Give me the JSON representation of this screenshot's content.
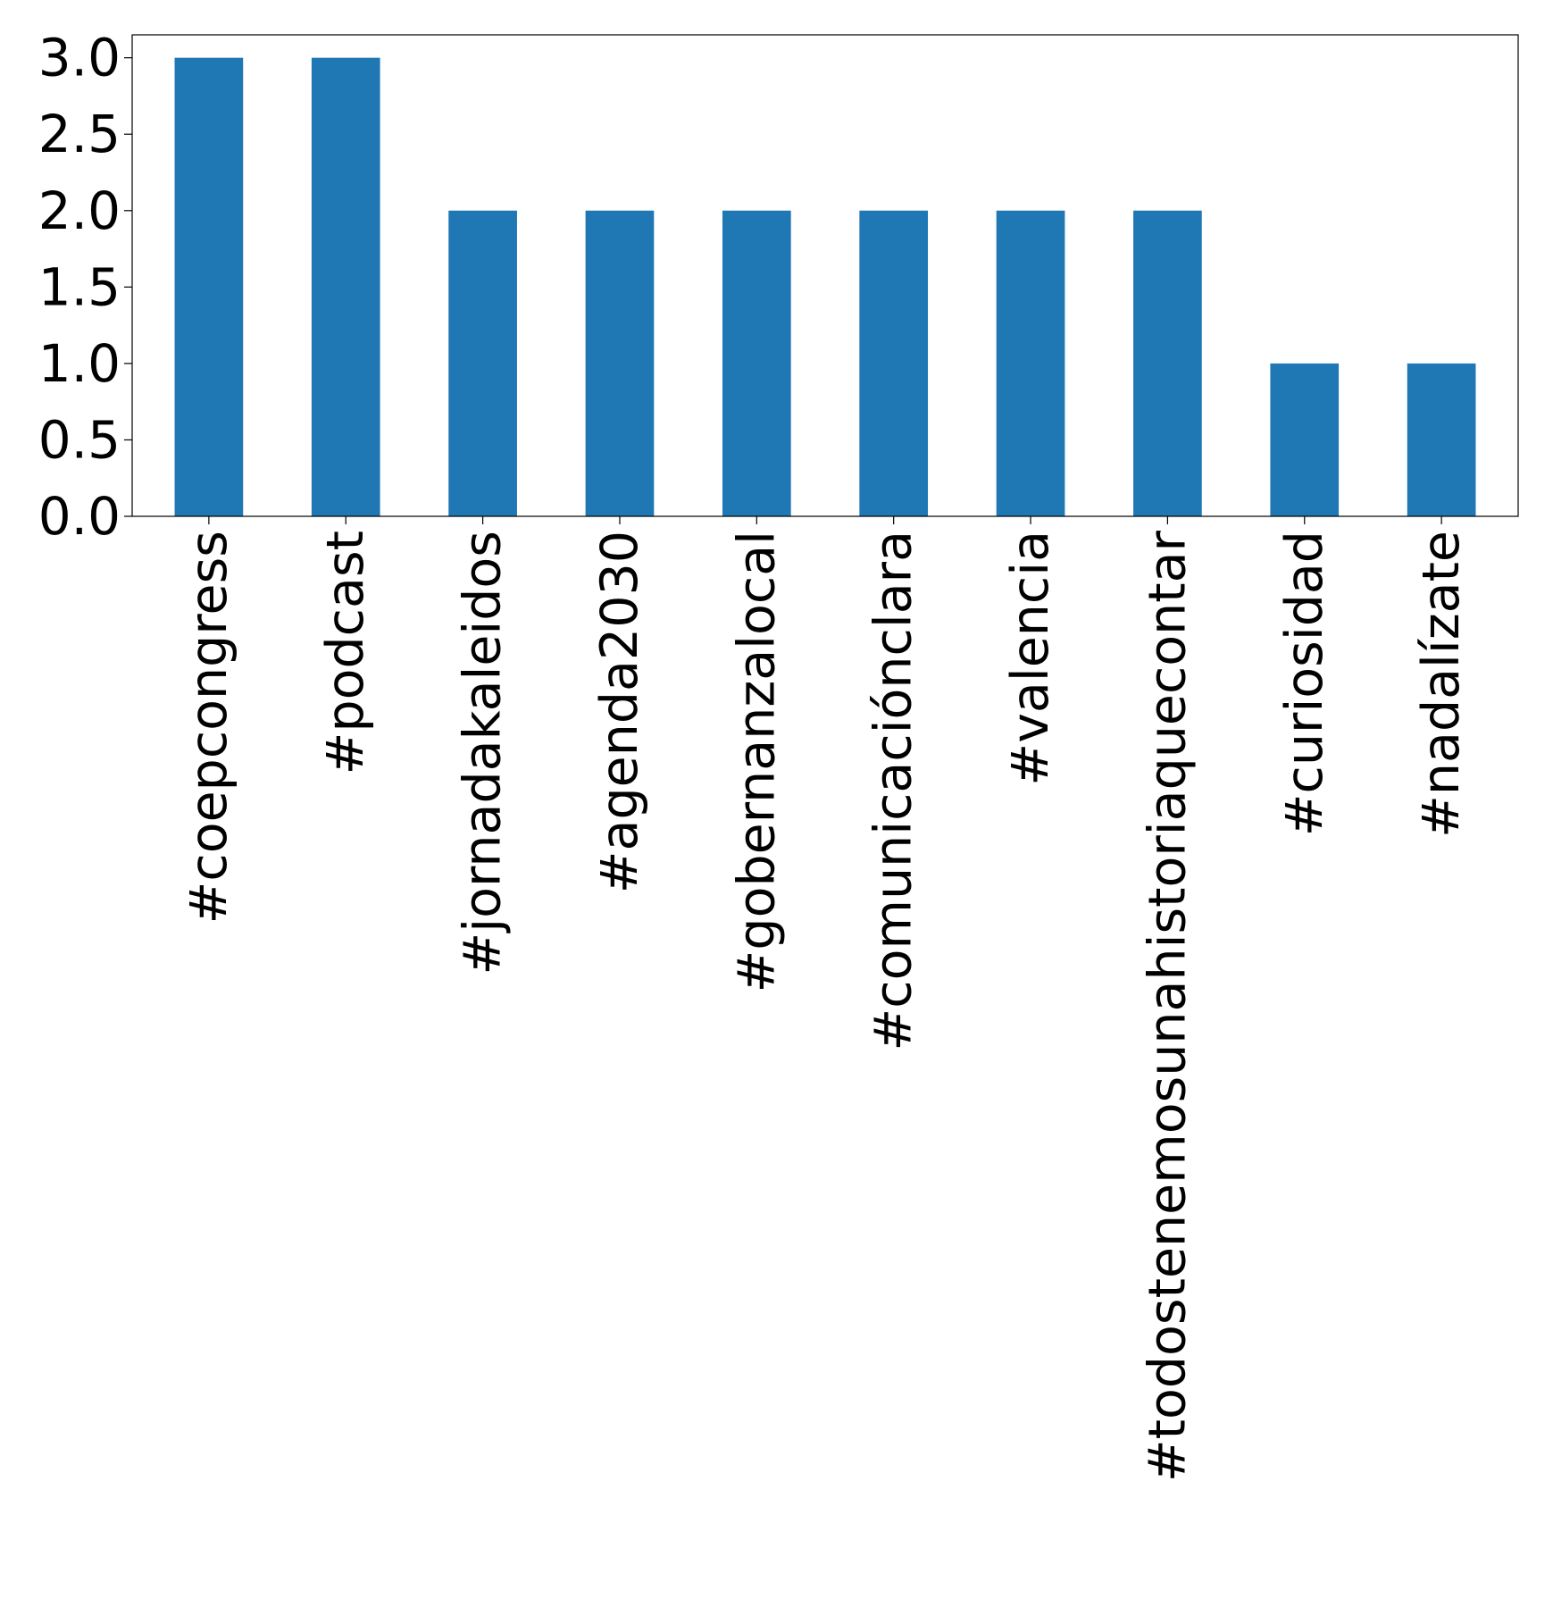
{
  "chart_data": {
    "type": "bar",
    "title": "",
    "xlabel": "",
    "ylabel": "",
    "categories": [
      "#coepcongress",
      "#podcast",
      "#jornadakaleidos",
      "#agenda2030",
      "#gobernanzalocal",
      "#comunicaciónclara",
      "#valencia",
      "#todostenemosunahistoriaquecontar",
      "#curiosidad",
      "#nadalízate"
    ],
    "values": [
      3,
      3,
      2,
      2,
      2,
      2,
      2,
      2,
      1,
      1
    ],
    "ylim": [
      0,
      3.15
    ],
    "yticks": [
      "0.0",
      "0.5",
      "1.0",
      "1.5",
      "2.0",
      "2.5",
      "3.0"
    ],
    "bar_color": "#1f77b4",
    "grid": false,
    "legend": "none"
  }
}
